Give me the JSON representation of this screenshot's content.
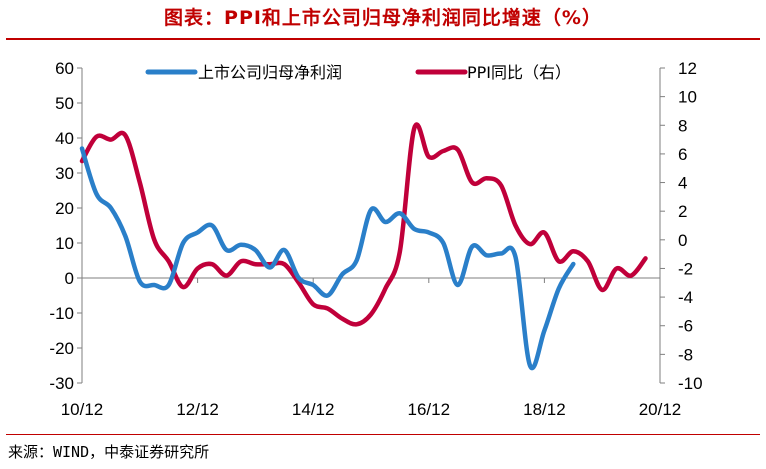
{
  "title": "图表：PPI和上市公司归母净利润同比增速（%）",
  "source": "来源：WIND，中泰证券研究所",
  "colors": {
    "title": "#c00000",
    "series_profit": "#2a7fc9",
    "series_ppi": "#c0003a",
    "axis": "#7f7f7f"
  },
  "chart_data": {
    "type": "line",
    "title": "图表：PPI和上市公司归母净利润同比增速（%）",
    "x_labels": [
      "10/12",
      "12/12",
      "14/12",
      "16/12",
      "18/12",
      "20/12"
    ],
    "x_range": [
      "2010-12",
      "2020-12"
    ],
    "y_left": {
      "ylim": [
        -30,
        60
      ],
      "ticks": [
        "60",
        "50",
        "40",
        "30",
        "20",
        "10",
        "0",
        "-10",
        "-20",
        "-30"
      ]
    },
    "y_right": {
      "ylim": [
        -10,
        12
      ],
      "ticks": [
        "12",
        "10",
        "8",
        "6",
        "4",
        "2",
        "0",
        "-2",
        "-4",
        "-6",
        "-8",
        "-10"
      ]
    },
    "legend_position": "top",
    "grid": false,
    "series": [
      {
        "name": "上市公司归母净利润",
        "axis": "left",
        "color": "#2a7fc9",
        "points": [
          [
            "2010-12",
            37
          ],
          [
            "2011-03",
            24
          ],
          [
            "2011-06",
            20
          ],
          [
            "2011-09",
            12
          ],
          [
            "2011-12",
            -1
          ],
          [
            "2012-03",
            -2
          ],
          [
            "2012-06",
            -2
          ],
          [
            "2012-09",
            10
          ],
          [
            "2012-12",
            13
          ],
          [
            "2013-03",
            15
          ],
          [
            "2013-06",
            8
          ],
          [
            "2013-09",
            9.5
          ],
          [
            "2013-12",
            8
          ],
          [
            "2014-03",
            3
          ],
          [
            "2014-06",
            8
          ],
          [
            "2014-09",
            0
          ],
          [
            "2014-12",
            -2
          ],
          [
            "2015-03",
            -5
          ],
          [
            "2015-06",
            1
          ],
          [
            "2015-09",
            5
          ],
          [
            "2015-12",
            19.5
          ],
          [
            "2016-03",
            16
          ],
          [
            "2016-06",
            18.5
          ],
          [
            "2016-09",
            14
          ],
          [
            "2016-12",
            13
          ],
          [
            "2017-03",
            10
          ],
          [
            "2017-06",
            -2
          ],
          [
            "2017-09",
            9
          ],
          [
            "2017-12",
            6.5
          ],
          [
            "2018-03",
            7
          ],
          [
            "2018-06",
            6
          ],
          [
            "2018-09",
            -25
          ],
          [
            "2018-12",
            -15
          ],
          [
            "2019-03",
            -3
          ],
          [
            "2019-06",
            4
          ]
        ]
      },
      {
        "name": "PPI同比（右）",
        "axis": "right",
        "color": "#c0003a",
        "points": [
          [
            "2010-12",
            5.5
          ],
          [
            "2011-03",
            7.2
          ],
          [
            "2011-06",
            7
          ],
          [
            "2011-09",
            7.3
          ],
          [
            "2011-12",
            4
          ],
          [
            "2012-03",
            0
          ],
          [
            "2012-06",
            -1.5
          ],
          [
            "2012-09",
            -3.3
          ],
          [
            "2012-12",
            -2
          ],
          [
            "2013-03",
            -1.7
          ],
          [
            "2013-06",
            -2.5
          ],
          [
            "2013-09",
            -1.5
          ],
          [
            "2013-12",
            -1.7
          ],
          [
            "2014-03",
            -1.7
          ],
          [
            "2014-06",
            -1.7
          ],
          [
            "2014-09",
            -3
          ],
          [
            "2014-12",
            -4.5
          ],
          [
            "2015-03",
            -4.8
          ],
          [
            "2015-06",
            -5.5
          ],
          [
            "2015-09",
            -5.9
          ],
          [
            "2015-12",
            -5.2
          ],
          [
            "2016-03",
            -3.4
          ],
          [
            "2016-06",
            -0.8
          ],
          [
            "2016-09",
            7.8
          ],
          [
            "2016-12",
            5.8
          ],
          [
            "2017-03",
            6.2
          ],
          [
            "2017-06",
            6.3
          ],
          [
            "2017-09",
            4
          ],
          [
            "2017-12",
            4.3
          ],
          [
            "2018-03",
            3.8
          ],
          [
            "2018-06",
            1
          ],
          [
            "2018-09",
            -0.3
          ],
          [
            "2018-12",
            0.5
          ],
          [
            "2019-03",
            -1.5
          ],
          [
            "2019-06",
            -0.8
          ],
          [
            "2019-09",
            -1.5
          ],
          [
            "2019-12",
            -3.5
          ],
          [
            "2020-03",
            -2
          ],
          [
            "2020-06",
            -2.5
          ],
          [
            "2020-09",
            -1.3
          ]
        ]
      }
    ]
  }
}
